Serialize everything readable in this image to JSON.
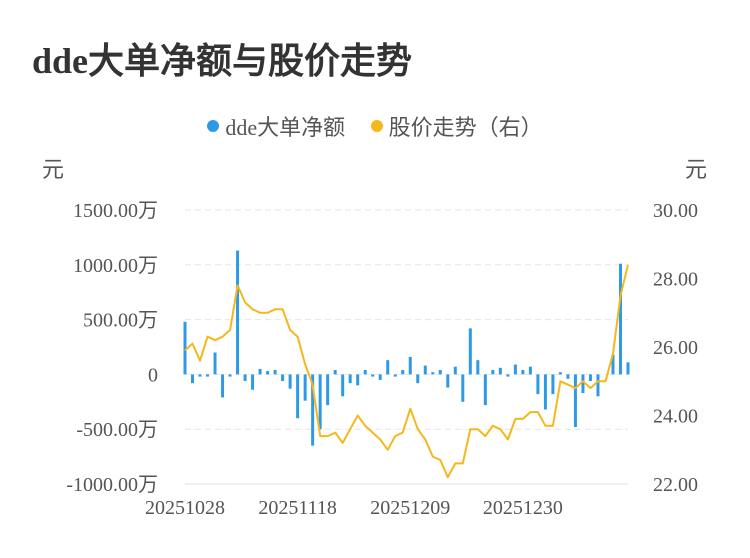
{
  "title": "dde大单净额与股价走势",
  "legend": [
    {
      "label": "dde大单净额",
      "color": "#2e9ae6"
    },
    {
      "label": "股价走势（右）",
      "color": "#f5b81c"
    }
  ],
  "left_unit": "元",
  "right_unit": "元",
  "chart_data": {
    "type": "bar+line",
    "title": "dde大单净额与股价走势",
    "y_left": {
      "ticks": [
        1500,
        1000,
        500,
        0,
        -500,
        -1000
      ],
      "tick_labels": [
        "1500.00万",
        "1000.00万",
        "500.00万",
        "0",
        "-500.00万",
        "-1000.00万"
      ],
      "range": [
        -1000,
        1500
      ],
      "unit": "元"
    },
    "y_right": {
      "ticks": [
        30,
        28,
        26,
        24,
        22
      ],
      "tick_labels": [
        "30.00",
        "28.00",
        "26.00",
        "24.00",
        "22.00"
      ],
      "range": [
        22,
        30
      ],
      "unit": "元"
    },
    "x_tick_labels": [
      "20251028",
      "20251118",
      "20251209",
      "20251230"
    ],
    "x_tick_index": [
      0,
      15,
      30,
      45
    ],
    "grid": true,
    "legend_position": "top-center",
    "series": [
      {
        "name": "dde大单净额",
        "type": "bar",
        "axis": "left",
        "color": "#2e9ae6",
        "values": [
          480,
          -80,
          -20,
          -20,
          200,
          -210,
          -20,
          1130,
          -60,
          -140,
          50,
          30,
          40,
          -60,
          -130,
          -400,
          -240,
          -650,
          -500,
          -280,
          40,
          -200,
          -80,
          -100,
          40,
          -20,
          -50,
          130,
          -20,
          40,
          160,
          -80,
          80,
          20,
          40,
          -120,
          70,
          -250,
          420,
          130,
          -280,
          40,
          60,
          -20,
          90,
          40,
          70,
          -180,
          -320,
          -180,
          20,
          -40,
          -480,
          -170,
          -60,
          -200,
          0,
          180,
          1010,
          110
        ]
      },
      {
        "name": "股价走势（右）",
        "type": "line",
        "axis": "right",
        "color": "#f5b81c",
        "values": [
          25.9,
          26.1,
          25.6,
          26.3,
          26.2,
          26.3,
          26.5,
          27.8,
          27.3,
          27.1,
          27.0,
          27.0,
          27.1,
          27.1,
          26.5,
          26.3,
          25.5,
          24.9,
          23.4,
          23.4,
          23.5,
          23.2,
          23.6,
          24.0,
          23.7,
          23.5,
          23.3,
          23.0,
          23.4,
          23.5,
          24.2,
          23.6,
          23.3,
          22.8,
          22.7,
          22.2,
          22.6,
          22.6,
          23.6,
          23.6,
          23.4,
          23.7,
          23.6,
          23.3,
          23.9,
          23.9,
          24.1,
          24.1,
          23.7,
          23.7,
          25.0,
          24.9,
          24.8,
          25.0,
          24.8,
          25.0,
          25.0,
          25.8,
          27.5,
          28.4
        ]
      }
    ]
  }
}
